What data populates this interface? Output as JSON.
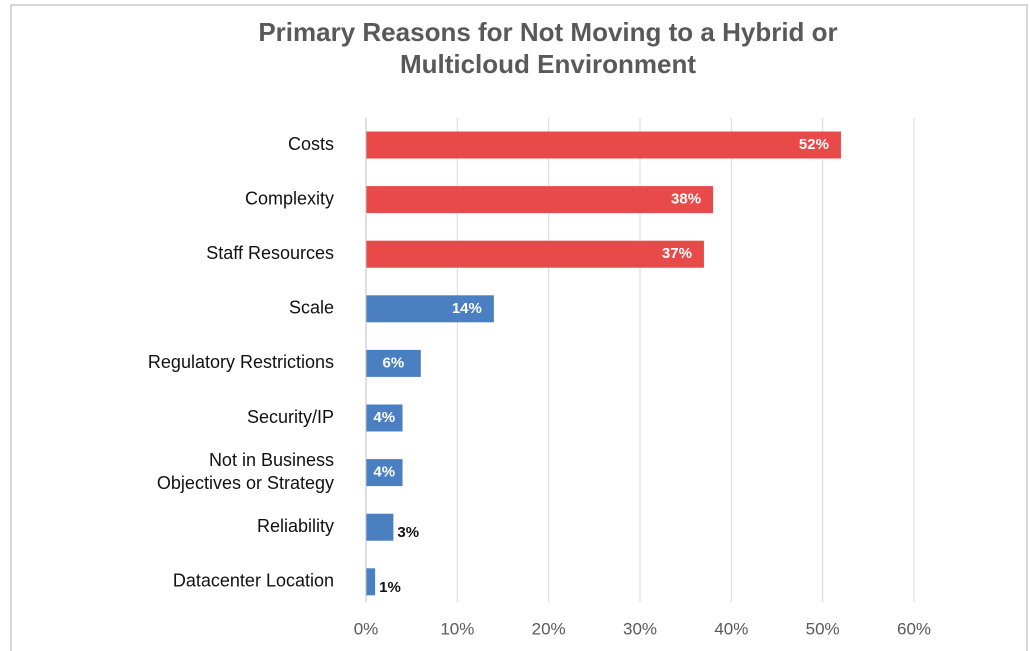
{
  "chart_data": {
    "type": "bar",
    "orientation": "horizontal",
    "title": "Primary Reasons for Not Moving to a Hybrid or\nMulticloud Environment",
    "categories": [
      "Costs",
      "Complexity",
      "Staff Resources",
      "Scale",
      "Regulatory Restrictions",
      "Security/IP",
      "Not in Business\nObjectives or Strategy",
      "Reliability",
      "Datacenter Location"
    ],
    "values": [
      52,
      38,
      37,
      14,
      6,
      4,
      4,
      3,
      1
    ],
    "value_labels": [
      "52%",
      "38%",
      "37%",
      "14%",
      "6%",
      "4%",
      "4%",
      "3%",
      "1%"
    ],
    "colors": [
      "#e84a4a",
      "#e84a4a",
      "#e84a4a",
      "#4a7fc1",
      "#4a7fc1",
      "#4a7fc1",
      "#4a7fc1",
      "#4a7fc1",
      "#4a7fc1"
    ],
    "xlim": [
      0,
      60
    ],
    "xticks": [
      {
        "value": 0,
        "label": "0%"
      },
      {
        "value": 10,
        "label": "10%"
      },
      {
        "value": 20,
        "label": "20%"
      },
      {
        "value": 30,
        "label": "30%"
      },
      {
        "value": 40,
        "label": "40%"
      },
      {
        "value": 50,
        "label": "50%"
      },
      {
        "value": 60,
        "label": "60%"
      }
    ],
    "grid": true
  }
}
